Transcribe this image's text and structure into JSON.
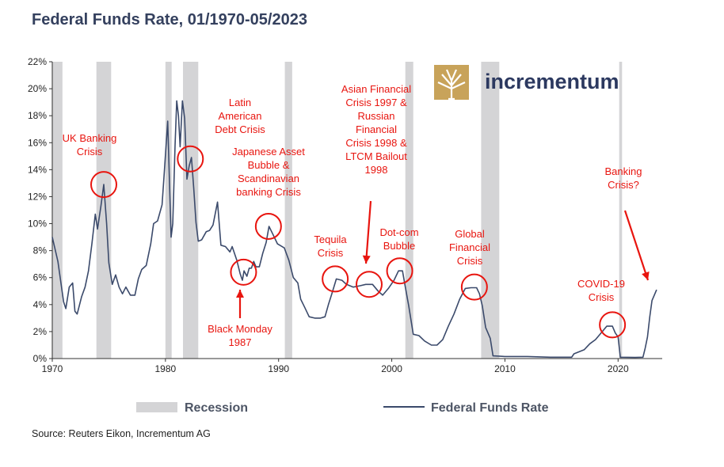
{
  "chart_data": {
    "type": "line",
    "title": "Federal Funds Rate, 01/1970-05/2023",
    "xlim": [
      1970,
      2023.9
    ],
    "ylim": [
      0,
      22
    ],
    "x_ticks": [
      1970,
      1980,
      1990,
      2000,
      2010,
      2020
    ],
    "y_ticks": [
      0,
      2,
      4,
      6,
      8,
      10,
      12,
      14,
      16,
      18,
      20,
      22
    ],
    "y_tick_format": "percent",
    "grid": false,
    "legend_position": "bottom",
    "recessions": [
      [
        1969.95,
        1970.9
      ],
      [
        1973.9,
        1975.2
      ],
      [
        1980.0,
        1980.55
      ],
      [
        1981.55,
        1982.9
      ],
      [
        1990.55,
        1991.2
      ],
      [
        2001.2,
        2001.9
      ],
      [
        2007.9,
        2009.5
      ],
      [
        2020.1,
        2020.35
      ]
    ],
    "series": [
      {
        "name": "Federal Funds Rate",
        "color": "#3b4a6b",
        "points": [
          [
            1970.0,
            9.0
          ],
          [
            1970.5,
            7.2
          ],
          [
            1971.0,
            4.2
          ],
          [
            1971.2,
            3.7
          ],
          [
            1971.5,
            5.3
          ],
          [
            1971.8,
            5.6
          ],
          [
            1972.0,
            3.5
          ],
          [
            1972.2,
            3.3
          ],
          [
            1972.6,
            4.6
          ],
          [
            1972.9,
            5.3
          ],
          [
            1973.2,
            6.5
          ],
          [
            1973.5,
            8.5
          ],
          [
            1973.8,
            10.7
          ],
          [
            1974.0,
            9.6
          ],
          [
            1974.3,
            11.3
          ],
          [
            1974.55,
            12.9
          ],
          [
            1974.8,
            10.0
          ],
          [
            1975.0,
            7.1
          ],
          [
            1975.3,
            5.5
          ],
          [
            1975.6,
            6.2
          ],
          [
            1975.9,
            5.3
          ],
          [
            1976.2,
            4.8
          ],
          [
            1976.5,
            5.3
          ],
          [
            1976.9,
            4.7
          ],
          [
            1977.3,
            4.7
          ],
          [
            1977.6,
            5.9
          ],
          [
            1977.9,
            6.6
          ],
          [
            1978.3,
            6.9
          ],
          [
            1978.7,
            8.5
          ],
          [
            1978.95,
            10.0
          ],
          [
            1979.3,
            10.2
          ],
          [
            1979.7,
            11.4
          ],
          [
            1979.9,
            13.8
          ],
          [
            1980.2,
            17.6
          ],
          [
            1980.5,
            9.0
          ],
          [
            1980.65,
            10.0
          ],
          [
            1980.85,
            15.8
          ],
          [
            1981.0,
            19.1
          ],
          [
            1981.15,
            18.0
          ],
          [
            1981.3,
            15.7
          ],
          [
            1981.5,
            19.1
          ],
          [
            1981.7,
            17.8
          ],
          [
            1981.9,
            13.3
          ],
          [
            1982.1,
            14.3
          ],
          [
            1982.3,
            14.9
          ],
          [
            1982.5,
            12.6
          ],
          [
            1982.7,
            10.1
          ],
          [
            1982.9,
            8.7
          ],
          [
            1983.2,
            8.8
          ],
          [
            1983.6,
            9.4
          ],
          [
            1983.9,
            9.5
          ],
          [
            1984.2,
            9.9
          ],
          [
            1984.6,
            11.6
          ],
          [
            1984.9,
            8.4
          ],
          [
            1985.3,
            8.3
          ],
          [
            1985.7,
            7.9
          ],
          [
            1985.9,
            8.3
          ],
          [
            1986.3,
            7.3
          ],
          [
            1986.6,
            6.3
          ],
          [
            1986.8,
            5.8
          ],
          [
            1986.95,
            6.5
          ],
          [
            1987.2,
            6.1
          ],
          [
            1987.4,
            6.7
          ],
          [
            1987.6,
            6.7
          ],
          [
            1987.8,
            7.2
          ],
          [
            1988.0,
            6.8
          ],
          [
            1988.3,
            6.8
          ],
          [
            1988.6,
            7.8
          ],
          [
            1988.9,
            8.6
          ],
          [
            1989.15,
            9.8
          ],
          [
            1989.5,
            9.2
          ],
          [
            1989.9,
            8.5
          ],
          [
            1990.5,
            8.2
          ],
          [
            1990.9,
            7.3
          ],
          [
            1991.3,
            6.0
          ],
          [
            1991.7,
            5.6
          ],
          [
            1991.95,
            4.4
          ],
          [
            1992.3,
            3.8
          ],
          [
            1992.7,
            3.1
          ],
          [
            1993.2,
            3.0
          ],
          [
            1993.7,
            3.0
          ],
          [
            1994.1,
            3.1
          ],
          [
            1994.4,
            4.0
          ],
          [
            1994.7,
            4.8
          ],
          [
            1995.1,
            5.9
          ],
          [
            1995.6,
            5.8
          ],
          [
            1996.0,
            5.5
          ],
          [
            1996.6,
            5.3
          ],
          [
            1997.2,
            5.4
          ],
          [
            1997.7,
            5.5
          ],
          [
            1998.3,
            5.5
          ],
          [
            1998.8,
            5.0
          ],
          [
            1999.2,
            4.7
          ],
          [
            1999.7,
            5.2
          ],
          [
            2000.2,
            5.8
          ],
          [
            2000.6,
            6.5
          ],
          [
            2000.95,
            6.5
          ],
          [
            2001.2,
            5.3
          ],
          [
            2001.5,
            3.9
          ],
          [
            2001.9,
            1.8
          ],
          [
            2002.4,
            1.7
          ],
          [
            2002.9,
            1.3
          ],
          [
            2003.5,
            1.0
          ],
          [
            2004.0,
            1.0
          ],
          [
            2004.5,
            1.4
          ],
          [
            2005.0,
            2.4
          ],
          [
            2005.5,
            3.3
          ],
          [
            2006.0,
            4.4
          ],
          [
            2006.5,
            5.2
          ],
          [
            2007.0,
            5.25
          ],
          [
            2007.5,
            5.25
          ],
          [
            2007.75,
            4.8
          ],
          [
            2008.0,
            3.9
          ],
          [
            2008.3,
            2.3
          ],
          [
            2008.7,
            1.5
          ],
          [
            2008.95,
            0.2
          ],
          [
            2010.0,
            0.15
          ],
          [
            2012.0,
            0.15
          ],
          [
            2014.0,
            0.1
          ],
          [
            2015.9,
            0.1
          ],
          [
            2016.1,
            0.35
          ],
          [
            2017.0,
            0.65
          ],
          [
            2017.5,
            1.1
          ],
          [
            2018.0,
            1.4
          ],
          [
            2018.5,
            1.9
          ],
          [
            2019.0,
            2.4
          ],
          [
            2019.5,
            2.4
          ],
          [
            2019.75,
            1.9
          ],
          [
            2020.0,
            1.6
          ],
          [
            2020.2,
            0.1
          ],
          [
            2021.5,
            0.08
          ],
          [
            2022.2,
            0.1
          ],
          [
            2022.4,
            0.8
          ],
          [
            2022.6,
            1.6
          ],
          [
            2022.8,
            3.1
          ],
          [
            2023.0,
            4.3
          ],
          [
            2023.2,
            4.7
          ],
          [
            2023.4,
            5.1
          ]
        ]
      }
    ],
    "annotations": [
      {
        "lines": [
          "UK Banking",
          "Crisis"
        ]
      },
      {
        "lines": [
          "Latin",
          "American",
          "Debt Crisis"
        ]
      },
      {
        "lines": [
          "Japanese Asset",
          "Bubble &",
          "Scandinavian",
          "banking Crisis"
        ]
      },
      {
        "lines": [
          "Black Monday",
          "1987"
        ]
      },
      {
        "lines": [
          "Tequila",
          "Crisis"
        ]
      },
      {
        "lines": [
          "Asian Financial",
          "Crisis 1997 &",
          "Russian",
          "Financial",
          "Crisis 1998 &",
          "LTCM Bailout",
          "1998"
        ]
      },
      {
        "lines": [
          "Dot-com",
          "Bubble"
        ]
      },
      {
        "lines": [
          "Global",
          "Financial",
          "Crisis"
        ]
      },
      {
        "lines": [
          "COVID-19",
          "Crisis"
        ]
      },
      {
        "lines": [
          "Banking",
          "Crisis?"
        ]
      }
    ],
    "legend": [
      {
        "label": "Recession",
        "kind": "bar",
        "color": "#d4d4d6"
      },
      {
        "label": "Federal Funds Rate",
        "kind": "line",
        "color": "#3b4a6b"
      }
    ],
    "annotation_color": "#e8150f"
  },
  "logo": {
    "text": "incrementum",
    "color": "#2c3960",
    "mark_color": "#c8a35a"
  },
  "source": "Source: Reuters Eikon, Incrementum AG"
}
